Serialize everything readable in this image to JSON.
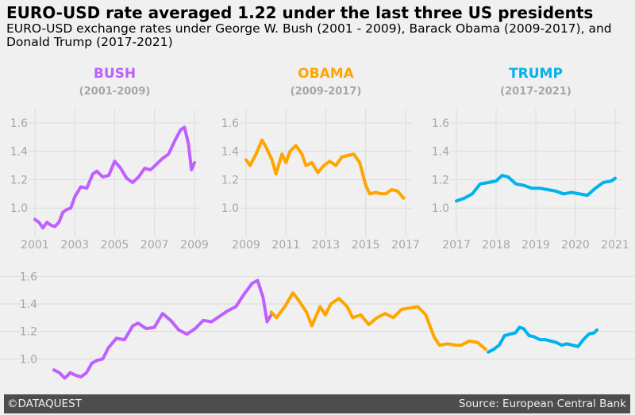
{
  "title": "EURO-USD rate averaged 1.22 under the last three US presidents",
  "subtitle": "EURO-USD exchange rates under George W. Bush (2001 - 2009), Barack Obama (2009-2017), and Donald Trump (2017-2021)",
  "footer": {
    "left": "©DATAQUEST",
    "right": "Source: European Central Bank"
  },
  "colors": {
    "bush": "#BF5FFF",
    "obama": "#ffa500",
    "trump": "#00B2EE",
    "grid": "#dcdcdc",
    "tick": "#a6a6a6"
  },
  "chart_data": [
    {
      "type": "line",
      "id": "bush",
      "title": "BUSH",
      "subtitle": "(2001-2009)",
      "xlim": [
        2001,
        2009
      ],
      "ylim": [
        0.8,
        1.7
      ],
      "xticks": [
        2001,
        2003,
        2005,
        2007,
        2009
      ],
      "yticks": [
        1.0,
        1.2,
        1.4,
        1.6
      ],
      "x": [
        2001.0,
        2001.2,
        2001.4,
        2001.6,
        2001.8,
        2002.0,
        2002.2,
        2002.4,
        2002.6,
        2002.8,
        2003.0,
        2003.3,
        2003.6,
        2003.9,
        2004.1,
        2004.4,
        2004.7,
        2005.0,
        2005.3,
        2005.6,
        2005.9,
        2006.2,
        2006.5,
        2006.8,
        2007.1,
        2007.4,
        2007.7,
        2008.0,
        2008.3,
        2008.5,
        2008.7,
        2008.85,
        2009.0
      ],
      "values": [
        0.92,
        0.9,
        0.86,
        0.9,
        0.88,
        0.87,
        0.9,
        0.97,
        0.99,
        1.0,
        1.08,
        1.15,
        1.14,
        1.24,
        1.26,
        1.22,
        1.23,
        1.33,
        1.28,
        1.21,
        1.18,
        1.22,
        1.28,
        1.27,
        1.31,
        1.35,
        1.38,
        1.47,
        1.55,
        1.57,
        1.45,
        1.27,
        1.32
      ]
    },
    {
      "type": "line",
      "id": "obama",
      "title": "OBAMA",
      "subtitle": "(2009-2017)",
      "xlim": [
        2009,
        2017
      ],
      "ylim": [
        0.8,
        1.7
      ],
      "xticks": [
        2009,
        2011,
        2013,
        2015,
        2017
      ],
      "yticks": [
        1.0,
        1.2,
        1.4,
        1.6
      ],
      "x": [
        2009.0,
        2009.2,
        2009.5,
        2009.8,
        2010.0,
        2010.3,
        2010.5,
        2010.8,
        2011.0,
        2011.2,
        2011.5,
        2011.8,
        2012.0,
        2012.3,
        2012.6,
        2012.9,
        2013.2,
        2013.5,
        2013.8,
        2014.1,
        2014.4,
        2014.7,
        2015.0,
        2015.2,
        2015.5,
        2015.8,
        2016.0,
        2016.3,
        2016.6,
        2016.9
      ],
      "values": [
        1.34,
        1.3,
        1.38,
        1.48,
        1.43,
        1.34,
        1.24,
        1.38,
        1.32,
        1.4,
        1.44,
        1.38,
        1.3,
        1.32,
        1.25,
        1.3,
        1.33,
        1.3,
        1.36,
        1.37,
        1.38,
        1.32,
        1.16,
        1.1,
        1.11,
        1.1,
        1.1,
        1.13,
        1.12,
        1.07
      ]
    },
    {
      "type": "line",
      "id": "trump",
      "title": "TRUMP",
      "subtitle": "(2017-2021)",
      "xlim": [
        2017,
        2021
      ],
      "ylim": [
        0.8,
        1.7
      ],
      "xticks": [
        2017,
        2018,
        2019,
        2020,
        2021
      ],
      "yticks": [
        1.0,
        1.2,
        1.4,
        1.6
      ],
      "x": [
        2017.0,
        2017.2,
        2017.4,
        2017.6,
        2017.8,
        2018.0,
        2018.15,
        2018.3,
        2018.5,
        2018.7,
        2018.9,
        2019.1,
        2019.3,
        2019.5,
        2019.7,
        2019.9,
        2020.1,
        2020.3,
        2020.5,
        2020.7,
        2020.9,
        2021.0
      ],
      "values": [
        1.05,
        1.07,
        1.1,
        1.17,
        1.18,
        1.19,
        1.23,
        1.22,
        1.17,
        1.16,
        1.14,
        1.14,
        1.13,
        1.12,
        1.1,
        1.11,
        1.1,
        1.09,
        1.14,
        1.18,
        1.19,
        1.21
      ]
    },
    {
      "type": "line",
      "id": "combined",
      "xlim": [
        2001,
        2021
      ],
      "ylim": [
        0.8,
        1.7
      ],
      "yticks": [
        1.0,
        1.2,
        1.4,
        1.6
      ]
    }
  ]
}
